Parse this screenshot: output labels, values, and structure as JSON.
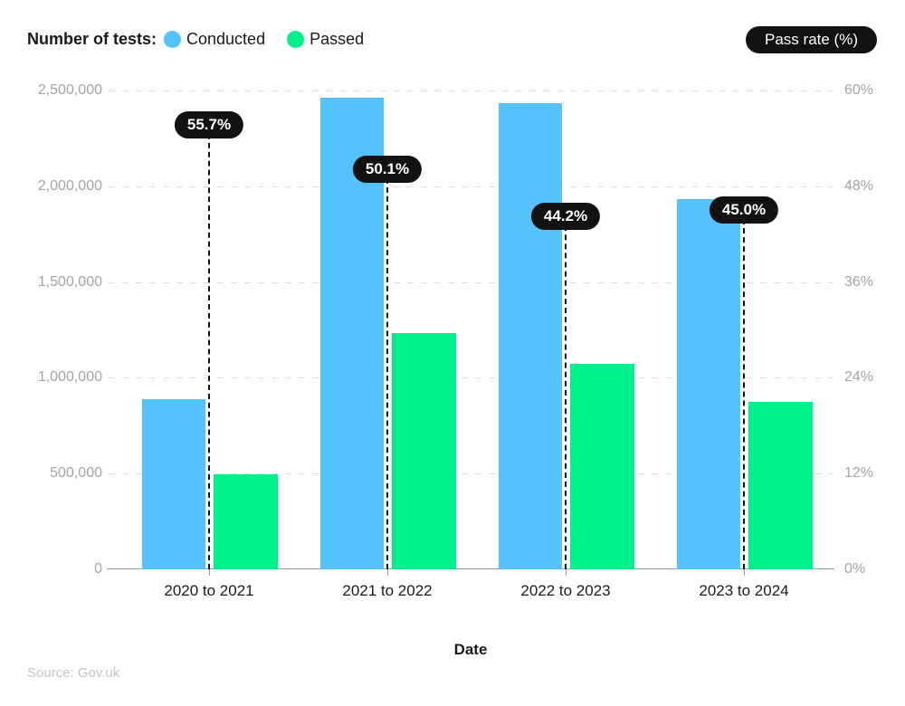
{
  "legend": {
    "title": "Number of tests:"
  },
  "colors": {
    "conducted": "#56C2FC",
    "passed": "#00F08C",
    "pill_background": "#121212",
    "pill_text": "#FFFFFF",
    "gridline": "#DCDCDC",
    "axis_line": "#9A9A9A",
    "axis_tick_text": "#A3A3A3",
    "category_text": "#1A1A1A",
    "source_text": "#C5C5C5"
  },
  "chart_data": {
    "type": "bar",
    "title": "",
    "categories": [
      "2020 to 2021",
      "2021 to 2022",
      "2022 to 2023",
      "2023 to 2024"
    ],
    "series": [
      {
        "name": "Conducted",
        "color": "#56C2FC",
        "values": [
          890000,
          2460000,
          2435000,
          1935000
        ]
      },
      {
        "name": "Passed",
        "color": "#00F08C",
        "values": [
          495000,
          1235000,
          1075000,
          875000
        ]
      }
    ],
    "pass_rate": {
      "name": "Pass rate (%)",
      "axis": "right",
      "values": [
        55.7,
        50.1,
        44.2,
        45.0
      ],
      "labels": [
        "55.7%",
        "50.1%",
        "44.2%",
        "45.0%"
      ]
    },
    "xlabel": "Date",
    "left_axis": {
      "range": [
        0,
        2500000
      ],
      "ticks": [
        0,
        500000,
        1000000,
        1500000,
        2000000,
        2500000
      ],
      "tick_labels": [
        "0",
        "500,000",
        "1,000,000",
        "1,500,000",
        "2,000,000",
        "2,500,000"
      ]
    },
    "right_axis": {
      "title": "Pass rate (%)",
      "range": [
        0,
        60
      ],
      "ticks": [
        0,
        12,
        24,
        36,
        48,
        60
      ],
      "tick_labels": [
        "0%",
        "12%",
        "24%",
        "36%",
        "48%",
        "60%"
      ]
    },
    "grid": "horizontal-dashed",
    "legend_position": "top-left",
    "source": "Source: Gov.uk"
  }
}
